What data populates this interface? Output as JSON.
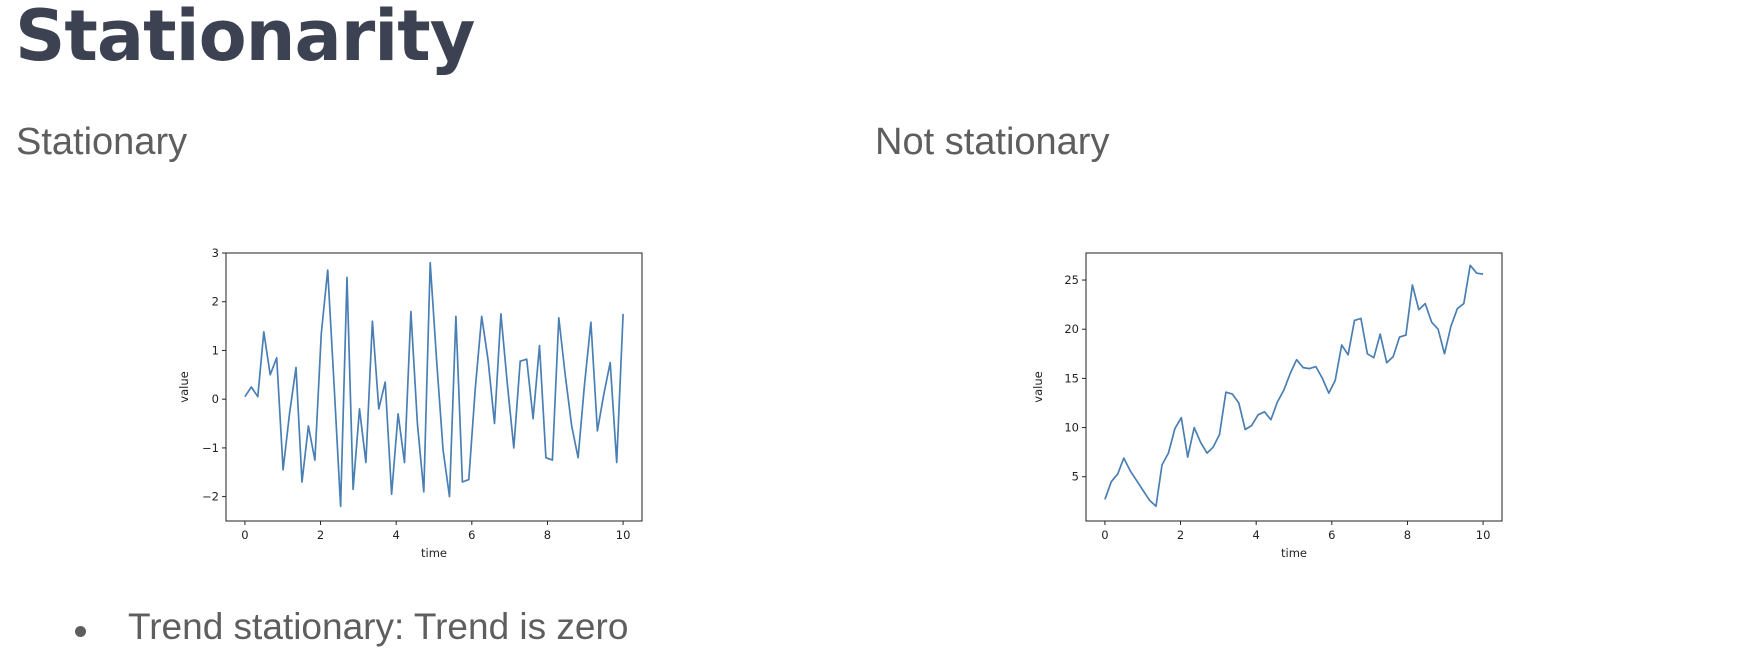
{
  "slide": {
    "title": "Stationarity",
    "left_heading": "Stationary",
    "right_heading": "Not stationary",
    "bullets": [
      "Trend stationary: Trend is zero"
    ]
  },
  "colors": {
    "series": "#4a7fb4"
  },
  "chart_data": [
    {
      "type": "line",
      "title": "",
      "xlabel": "time",
      "ylabel": "value",
      "xlim": [
        -0.5,
        10.5
      ],
      "ylim": [
        -2.5,
        3.0
      ],
      "xticks": [
        0,
        2,
        4,
        6,
        8,
        10
      ],
      "xtick_labels": [
        "0",
        "2",
        "4",
        "6",
        "8",
        "10"
      ],
      "yticks": [
        -2,
        -1,
        0,
        1,
        2,
        3
      ],
      "ytick_labels": [
        "−2",
        "−1",
        "0",
        "1",
        "2",
        "3"
      ],
      "series": [
        {
          "name": "stationary",
          "x": [
            0,
            0.17,
            0.34,
            0.5,
            0.67,
            0.84,
            1.01,
            1.18,
            1.35,
            1.51,
            1.68,
            1.85,
            2.02,
            2.19,
            2.36,
            2.53,
            2.7,
            2.86,
            3.03,
            3.2,
            3.37,
            3.54,
            3.71,
            3.88,
            4.05,
            4.22,
            4.39,
            4.56,
            4.73,
            4.9,
            5.07,
            5.24,
            5.41,
            5.58,
            5.75,
            5.92,
            6.09,
            6.26,
            6.43,
            6.6,
            6.77,
            6.94,
            7.11,
            7.28,
            7.45,
            7.62,
            7.79,
            7.96,
            8.13,
            8.3,
            8.47,
            8.64,
            8.81,
            8.98,
            9.15,
            9.32,
            9.49,
            9.66,
            9.83,
            10.0
          ],
          "y": [
            0.05,
            0.25,
            0.05,
            1.38,
            0.5,
            0.85,
            -1.45,
            -0.3,
            0.65,
            -1.7,
            -0.55,
            -1.25,
            1.35,
            2.65,
            0.25,
            -2.2,
            2.5,
            -1.85,
            -0.2,
            -1.3,
            1.6,
            -0.2,
            0.35,
            -1.95,
            -0.3,
            -1.3,
            1.8,
            -0.5,
            -1.9,
            2.8,
            0.8,
            -1.05,
            -2.0,
            1.7,
            -1.7,
            -1.65,
            0.2,
            1.7,
            0.8,
            -0.5,
            1.75,
            0.3,
            -1.0,
            0.78,
            0.82,
            -0.4,
            1.1,
            -1.2,
            -1.25,
            1.67,
            0.5,
            -0.55,
            -1.2,
            0.3,
            1.58,
            -0.65,
            0.1,
            0.75,
            -1.3,
            1.75
          ]
        }
      ]
    },
    {
      "type": "line",
      "title": "",
      "xlabel": "time",
      "ylabel": "value",
      "xlim": [
        -0.5,
        10.5
      ],
      "ylim": [
        0.5,
        27.75
      ],
      "xticks": [
        0,
        2,
        4,
        6,
        8,
        10
      ],
      "xtick_labels": [
        "0",
        "2",
        "4",
        "6",
        "8",
        "10"
      ],
      "yticks": [
        5,
        10,
        15,
        20,
        25
      ],
      "ytick_labels": [
        "5",
        "10",
        "15",
        "20",
        "25"
      ],
      "series": [
        {
          "name": "not stationary",
          "x": [
            0,
            0.17,
            0.34,
            0.5,
            0.67,
            0.84,
            1.01,
            1.18,
            1.35,
            1.51,
            1.68,
            1.85,
            2.02,
            2.19,
            2.36,
            2.53,
            2.7,
            2.86,
            3.03,
            3.2,
            3.37,
            3.54,
            3.71,
            3.88,
            4.05,
            4.22,
            4.39,
            4.56,
            4.73,
            4.9,
            5.07,
            5.24,
            5.41,
            5.58,
            5.75,
            5.92,
            6.09,
            6.26,
            6.43,
            6.6,
            6.77,
            6.94,
            7.11,
            7.28,
            7.45,
            7.62,
            7.79,
            7.96,
            8.13,
            8.3,
            8.47,
            8.64,
            8.81,
            8.98,
            9.15,
            9.32,
            9.49,
            9.66,
            9.83,
            10.0
          ],
          "y": [
            2.7,
            4.5,
            5.3,
            6.9,
            5.6,
            4.6,
            3.6,
            2.6,
            2.0,
            6.2,
            7.4,
            9.9,
            11.0,
            7.0,
            10.0,
            8.5,
            7.4,
            8.0,
            9.3,
            13.6,
            13.4,
            12.5,
            9.8,
            10.2,
            11.3,
            11.6,
            10.8,
            12.6,
            13.8,
            15.5,
            16.9,
            16.1,
            16.0,
            16.2,
            15.0,
            13.5,
            14.8,
            18.4,
            17.4,
            20.9,
            21.1,
            17.5,
            17.1,
            19.5,
            16.6,
            17.2,
            19.2,
            19.4,
            24.5,
            22.0,
            22.6,
            20.7,
            20.0,
            17.5,
            20.3,
            22.1,
            22.6,
            26.5,
            25.7,
            25.6
          ]
        }
      ]
    }
  ]
}
